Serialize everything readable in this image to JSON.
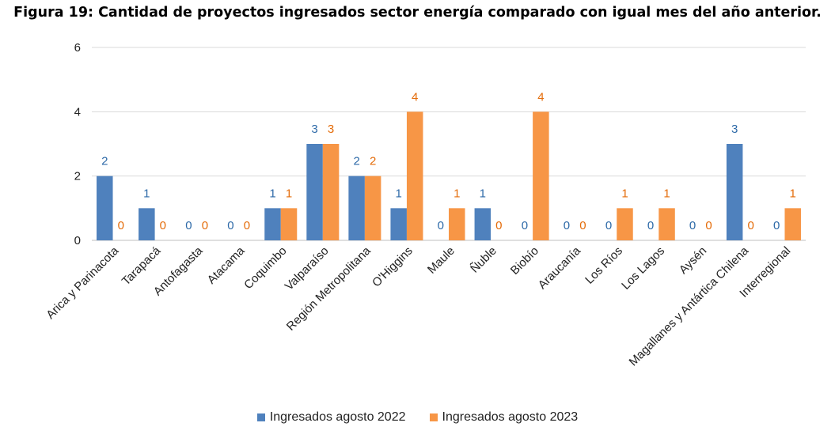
{
  "chart_data": {
    "type": "bar",
    "title": "Figura 19: Cantidad de proyectos ingresados sector energía comparado con igual mes del año anterior.",
    "categories": [
      "Arica y Parinacota",
      "Tarapacá",
      "Antofagasta",
      "Atacama",
      "Coquimbo",
      "Valparaíso",
      "Región Metropolitana",
      "O'Higgins",
      "Maule",
      "Ñuble",
      "Biobío",
      "Araucanía",
      "Los Ríos",
      "Los Lagos",
      "Aysén",
      "Magallanes y Antártica Chilena",
      "Interregional"
    ],
    "series": [
      {
        "name": "Ingresados agosto 2022",
        "color": "#4f81bd",
        "values": [
          2,
          1,
          0,
          0,
          1,
          3,
          2,
          1,
          0,
          1,
          0,
          0,
          0,
          0,
          0,
          3,
          0
        ]
      },
      {
        "name": "Ingresados agosto 2023",
        "color": "#f79646",
        "values": [
          0,
          0,
          0,
          0,
          1,
          3,
          2,
          4,
          1,
          0,
          4,
          0,
          1,
          1,
          0,
          0,
          1
        ]
      }
    ],
    "ylim": [
      0,
      6
    ],
    "yticks": [
      0,
      2,
      4,
      6
    ],
    "grid": true,
    "data_labels": true,
    "legend_position": "bottom"
  }
}
